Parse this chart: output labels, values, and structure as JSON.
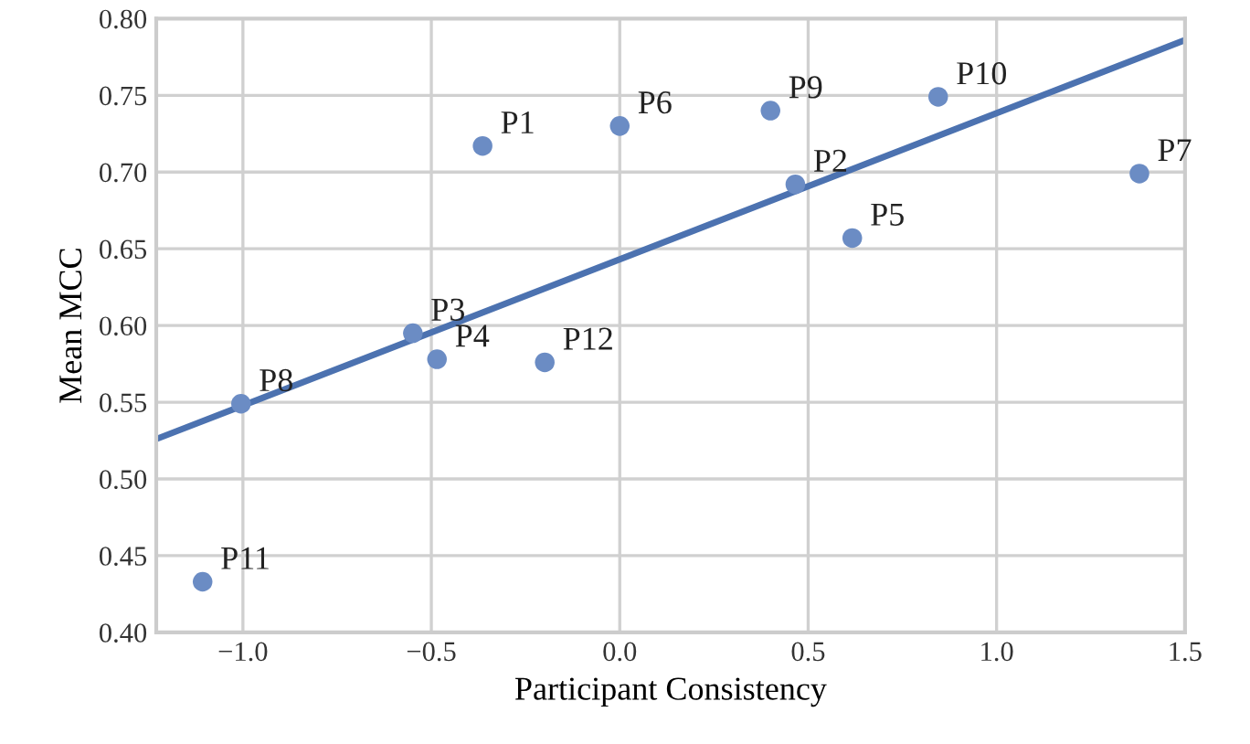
{
  "chart_data": {
    "type": "scatter",
    "xlabel": "Participant Consistency",
    "ylabel": "Mean MCC",
    "series": [
      {
        "marker": "circle",
        "color": "#6b8cc4",
        "x": [
          -0.364,
          0.466,
          -0.549,
          -0.485,
          0.617,
          0.0,
          1.379,
          -1.005,
          0.4,
          0.845,
          -1.107,
          -0.199
        ],
        "values": [
          0.717,
          0.692,
          0.595,
          0.578,
          0.657,
          0.73,
          0.699,
          0.549,
          0.74,
          0.749,
          0.433,
          0.576
        ]
      },
      {
        "type": "line",
        "color": "#4c72b0",
        "x": [
          -1.23,
          1.5
        ],
        "values": [
          0.526,
          0.786
        ]
      }
    ],
    "annotations": [
      {
        "text": "P1",
        "x": -0.364,
        "y": 0.717
      },
      {
        "text": "P2",
        "x": 0.466,
        "y": 0.692
      },
      {
        "text": "P3",
        "x": -0.549,
        "y": 0.595
      },
      {
        "text": "P4",
        "x": -0.485,
        "y": 0.578
      },
      {
        "text": "P5",
        "x": 0.617,
        "y": 0.657
      },
      {
        "text": "P6",
        "x": 0.0,
        "y": 0.73
      },
      {
        "text": "P7",
        "x": 1.379,
        "y": 0.699
      },
      {
        "text": "P8",
        "x": -1.005,
        "y": 0.549
      },
      {
        "text": "P9",
        "x": 0.4,
        "y": 0.74
      },
      {
        "text": "P10",
        "x": 0.845,
        "y": 0.749
      },
      {
        "text": "P11",
        "x": -1.107,
        "y": 0.433
      },
      {
        "text": "P12",
        "x": -0.199,
        "y": 0.576
      }
    ],
    "xlim": [
      -1.23,
      1.5
    ],
    "ylim": [
      0.4,
      0.8
    ],
    "xticks": [
      {
        "value": -1.0,
        "label": "−1.0"
      },
      {
        "value": -0.5,
        "label": "−0.5"
      },
      {
        "value": 0.0,
        "label": "0.0"
      },
      {
        "value": 0.5,
        "label": "0.5"
      },
      {
        "value": 1.0,
        "label": "1.0"
      },
      {
        "value": 1.5,
        "label": "1.5"
      }
    ],
    "yticks": [
      {
        "value": 0.4,
        "label": "0.40"
      },
      {
        "value": 0.45,
        "label": "0.45"
      },
      {
        "value": 0.5,
        "label": "0.50"
      },
      {
        "value": 0.55,
        "label": "0.55"
      },
      {
        "value": 0.6,
        "label": "0.60"
      },
      {
        "value": 0.65,
        "label": "0.65"
      },
      {
        "value": 0.7,
        "label": "0.70"
      },
      {
        "value": 0.75,
        "label": "0.75"
      },
      {
        "value": 0.8,
        "label": "0.80"
      }
    ],
    "grid": true
  }
}
